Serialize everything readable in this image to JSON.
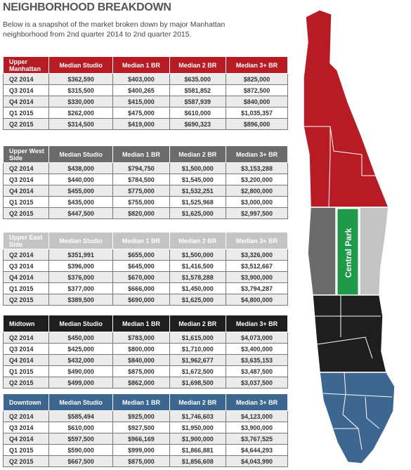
{
  "header": {
    "title": "NEIGHBORHOOD BREAKDOWN",
    "subtitle": "Below is a snapshot of the market broken down by major Manhattan neighborhood from 2nd quarter 2014 to 2nd quarter 2015."
  },
  "columns": [
    "Median Studio",
    "Median 1 BR",
    "Median 2 BR",
    "Median 3+ BR"
  ],
  "tables": [
    {
      "area_line1": "Upper",
      "area_line2": "Manhattan",
      "color": "#b71c24",
      "rows": [
        {
          "q": "Q2 2014",
          "studio": "$362,590",
          "br1": "$403,000",
          "br2": "$635.000",
          "br3": "$825,000"
        },
        {
          "q": "Q3 2014",
          "studio": "$315,500",
          "br1": "$400,265",
          "br2": "$581,852",
          "br3": "$872,500"
        },
        {
          "q": "Q4 2014",
          "studio": "$330,000",
          "br1": "$415,000",
          "br2": "$587,939",
          "br3": "$840,000"
        },
        {
          "q": "Q1 2015",
          "studio": "$262,000",
          "br1": "$475,000",
          "br2": "$610,000",
          "br3": "$1,035,357"
        },
        {
          "q": "Q2 2015",
          "studio": "$314,500",
          "br1": "$419,000",
          "br2": "$690,323",
          "br3": "$896,000"
        }
      ]
    },
    {
      "area_line1": "Upper West",
      "area_line2": "Side",
      "color": "#6b6b6b",
      "rows": [
        {
          "q": "Q2 2014",
          "studio": "$438,000",
          "br1": "$794,750",
          "br2": "$1,500,000",
          "br3": "$3,153,288"
        },
        {
          "q": "Q3 2014",
          "studio": "$440,000",
          "br1": "$784,500",
          "br2": "$1,545,000",
          "br3": "$3,200,000"
        },
        {
          "q": "Q4 2014",
          "studio": "$455,000",
          "br1": "$775,000",
          "br2": "$1,532,251",
          "br3": "$2,800,000"
        },
        {
          "q": "Q1 2015",
          "studio": "$435,000",
          "br1": "$755,000",
          "br2": "$1,525,968",
          "br3": "$3,000,000"
        },
        {
          "q": "Q2 2015",
          "studio": "$447,500",
          "br1": "$820,000",
          "br2": "$1,625,000",
          "br3": "$2,997,500"
        }
      ]
    },
    {
      "area_line1": "Upper East",
      "area_line2": "Side",
      "color": "#c4c4c4",
      "rows": [
        {
          "q": "Q2 2014",
          "studio": "$351,991",
          "br1": "$655,000",
          "br2": "$1,500,000",
          "br3": "$3,326,000"
        },
        {
          "q": "Q3 2014",
          "studio": "$396,000",
          "br1": "$645,000",
          "br2": "$1,416,500",
          "br3": "$3,512,667"
        },
        {
          "q": "Q4 2014",
          "studio": "$376,000",
          "br1": "$670,000",
          "br2": "$1,578,288",
          "br3": "$3,900,000"
        },
        {
          "q": "Q1 2015",
          "studio": "$377,000",
          "br1": "$666,000",
          "br2": "$1,450,000",
          "br3": "$3,794,287"
        },
        {
          "q": "Q2 2015",
          "studio": "$389,500",
          "br1": "$690,000",
          "br2": "$1,625,000",
          "br3": "$4,800,000"
        }
      ]
    },
    {
      "area_line1": "Midtown",
      "area_line2": "",
      "color": "#1e1e1e",
      "rows": [
        {
          "q": "Q2 2014",
          "studio": "$450,000",
          "br1": "$783,000",
          "br2": "$1,615,000",
          "br3": "$4,073,000"
        },
        {
          "q": "Q3 2014",
          "studio": "$425,000",
          "br1": "$800,000",
          "br2": "$1,710,000",
          "br3": "$3,400,000"
        },
        {
          "q": "Q4 2014",
          "studio": "$432,000",
          "br1": "$840,000",
          "br2": "$1,962,677",
          "br3": "$3,635,153"
        },
        {
          "q": "Q1 2015",
          "studio": "$490,000",
          "br1": "$875,000",
          "br2": "$1,672,500",
          "br3": "$3,487,500"
        },
        {
          "q": "Q2 2015",
          "studio": "$499,000",
          "br1": "$862,000",
          "br2": "$1,698,500",
          "br3": "$3,037,500"
        }
      ]
    },
    {
      "area_line1": "Downtown",
      "area_line2": "",
      "color": "#3d6791",
      "rows": [
        {
          "q": "Q2 2014",
          "studio": "$585,494",
          "br1": "$925,000",
          "br2": "$1,746,603",
          "br3": "$4,123,000"
        },
        {
          "q": "Q3 2014",
          "studio": "$610,000",
          "br1": "$927,500",
          "br2": "$1,950,000",
          "br3": "$3,900,000"
        },
        {
          "q": "Q4 2014",
          "studio": "$597,500",
          "br1": "$966,169",
          "br2": "$1,900,000",
          "br3": "$3,767,525"
        },
        {
          "q": "Q1 2015",
          "studio": "$590,000",
          "br1": "$999,000",
          "br2": "$1,866,881",
          "br3": "$4,644,293"
        },
        {
          "q": "Q2 2015",
          "studio": "$667,500",
          "br1": "$875,000",
          "br2": "$1,856,608",
          "br3": "$4,043,990"
        }
      ]
    }
  ],
  "map": {
    "park_label": "Central Park",
    "colors": {
      "upper_manhattan": "#b71c24",
      "upper_west_side": "#6b6b6b",
      "upper_east_side": "#c4c4c4",
      "central_park": "#1f9a48",
      "midtown": "#1e1e1e",
      "downtown": "#3d6791"
    }
  }
}
